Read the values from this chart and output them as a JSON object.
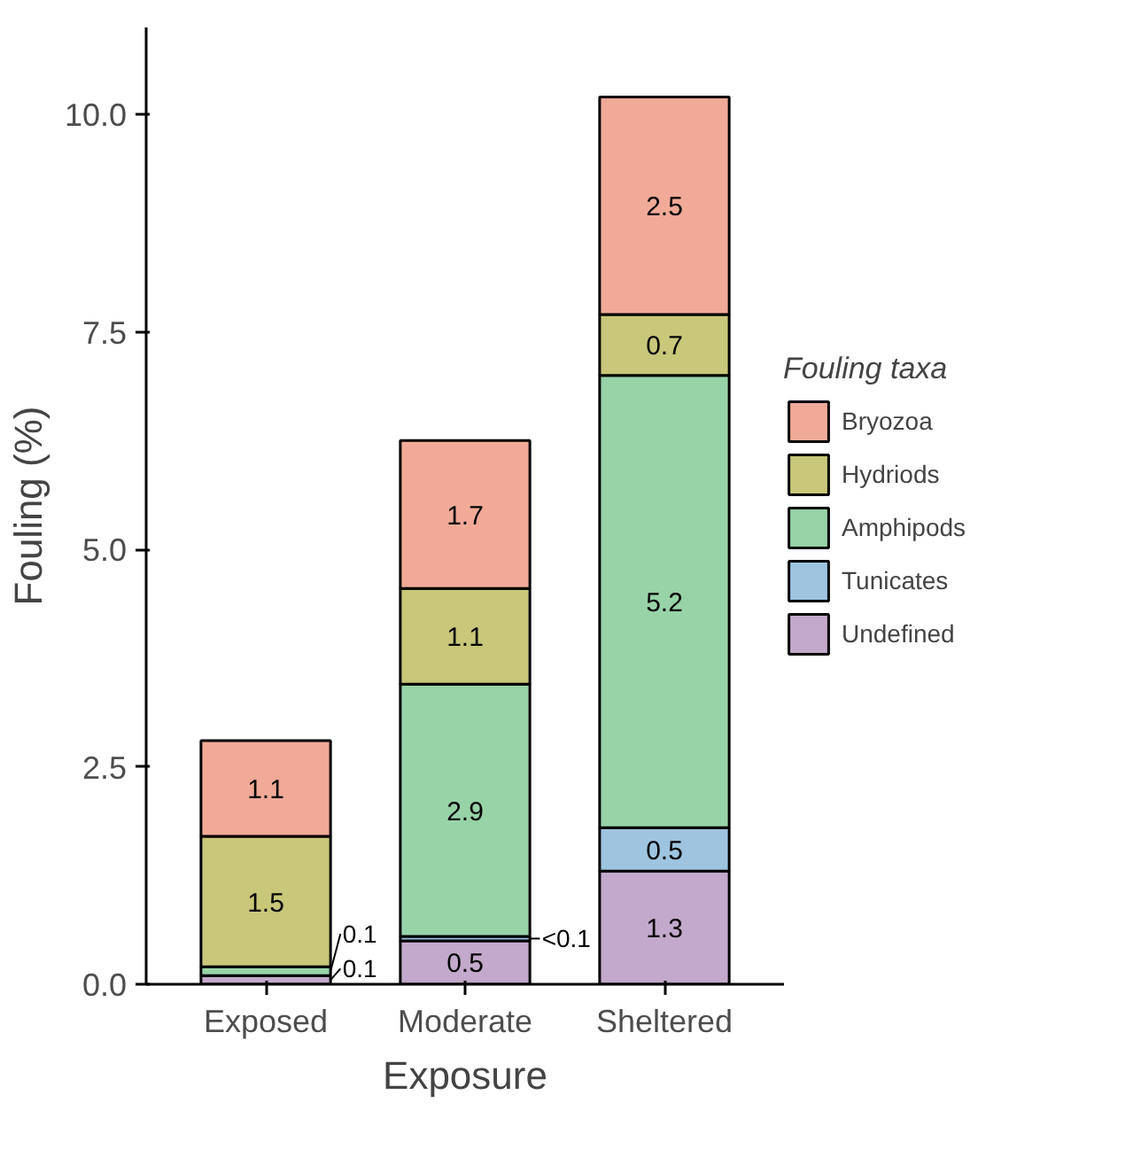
{
  "chart_data": {
    "type": "bar",
    "stacked": true,
    "xlabel": "Exposure",
    "ylabel": "Fouling (%)",
    "legend_title": "Fouling taxa",
    "legend": "right",
    "grid": false,
    "categories": [
      "Exposed",
      "Moderate",
      "Sheltered"
    ],
    "ylim": [
      0,
      11
    ],
    "yticks": [
      {
        "value": 0,
        "label": "0.0"
      },
      {
        "value": 2.5,
        "label": "2.5"
      },
      {
        "value": 5,
        "label": "5.0"
      },
      {
        "value": 7.5,
        "label": "7.5"
      },
      {
        "value": 10,
        "label": "10.0"
      }
    ],
    "series": [
      {
        "name": "Undefined",
        "color": "#c3a9cb",
        "values": [
          0.1,
          0.5,
          1.3
        ],
        "value_labels": [
          "0.1",
          "0.5",
          "1.3"
        ]
      },
      {
        "name": "Tunicates",
        "color": "#9ec4df",
        "values": [
          null,
          0.05,
          0.5
        ],
        "value_labels": [
          null,
          "<0.1",
          "0.5"
        ]
      },
      {
        "name": "Amphipods",
        "color": "#98d3a8",
        "values": [
          0.1,
          2.9,
          5.2
        ],
        "value_labels": [
          "0.1",
          "2.9",
          "5.2"
        ]
      },
      {
        "name": "Hydriods",
        "color": "#c8c77a",
        "values": [
          1.5,
          1.1,
          0.7
        ],
        "value_labels": [
          "1.5",
          "1.1",
          "0.7"
        ]
      },
      {
        "name": "Bryozoa",
        "color": "#f1aa98",
        "values": [
          1.1,
          1.7,
          2.5
        ],
        "value_labels": [
          "1.1",
          "1.7",
          "2.5"
        ]
      }
    ]
  }
}
